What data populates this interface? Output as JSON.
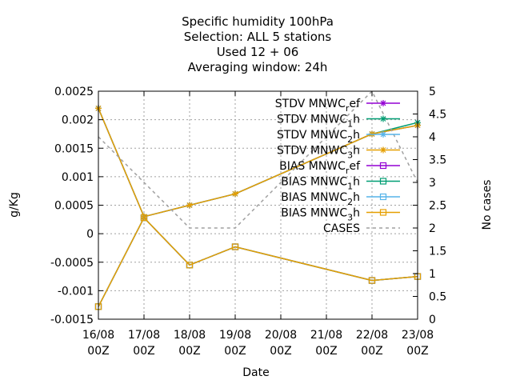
{
  "chart_data": {
    "type": "line",
    "title_lines": [
      "Specific humidity 100hPa",
      "Selection: ALL      5 stations",
      "Used  12 + 06",
      "Averaging window: 24h"
    ],
    "xlabel": "Date",
    "ylabel": "g/Kg",
    "y2label": "No cases",
    "x_ticks": [
      {
        "line1": "16/08",
        "line2": "00Z"
      },
      {
        "line1": "17/08",
        "line2": "00Z"
      },
      {
        "line1": "18/08",
        "line2": "00Z"
      },
      {
        "line1": "19/08",
        "line2": "00Z"
      },
      {
        "line1": "20/08",
        "line2": "00Z"
      },
      {
        "line1": "21/08",
        "line2": "00Z"
      },
      {
        "line1": "22/08",
        "line2": "00Z"
      },
      {
        "line1": "23/08",
        "line2": "00Z"
      }
    ],
    "xlim": [
      0,
      7
    ],
    "ylim": [
      -0.0015,
      0.0025
    ],
    "y_ticks": [
      "-0.0015",
      "-0.001",
      "-0.0005",
      "0",
      "0.0005",
      "0.001",
      "0.0015",
      "0.002",
      "0.0025"
    ],
    "y_tick_values": [
      -0.0015,
      -0.001,
      -0.0005,
      0,
      0.0005,
      0.001,
      0.0015,
      0.002,
      0.0025
    ],
    "y2lim": [
      0,
      5
    ],
    "y2_ticks": [
      "0",
      "0.5",
      "1",
      "1.5",
      "2",
      "2.5",
      "3",
      "3.5",
      "4",
      "4.5",
      "5"
    ],
    "y2_tick_values": [
      0,
      0.5,
      1,
      1.5,
      2,
      2.5,
      3,
      3.5,
      4,
      4.5,
      5
    ],
    "grid": true,
    "legend_position": "top-right",
    "series": [
      {
        "label_parts": [
          "STDV MNWC",
          "r",
          "ef"
        ],
        "color": "#9400d3",
        "marker": "star",
        "axis": "y1",
        "x": [
          0,
          1,
          2,
          3,
          6,
          7
        ],
        "values": [
          0.0022,
          0.0003,
          0.0005,
          0.0007,
          0.00175,
          0.0019
        ]
      },
      {
        "label_parts": [
          "STDV MNWC",
          "1",
          "h"
        ],
        "color": "#009e73",
        "marker": "star",
        "axis": "y1",
        "x": [
          0,
          1,
          2,
          3,
          6,
          7
        ],
        "values": [
          0.0022,
          0.0003,
          0.0005,
          0.0007,
          0.00175,
          0.00195
        ]
      },
      {
        "label_parts": [
          "STDV MNWC",
          "2",
          "h"
        ],
        "color": "#56b4e9",
        "marker": "star",
        "axis": "y1",
        "x": [
          0,
          1,
          2,
          3,
          6,
          7
        ],
        "values": [
          0.0022,
          0.0003,
          0.0005,
          0.0007,
          0.00175,
          0.0019
        ]
      },
      {
        "label_parts": [
          "STDV MNWC",
          "3",
          "h"
        ],
        "color": "#e69f00",
        "marker": "star",
        "axis": "y1",
        "x": [
          0,
          1,
          2,
          3,
          6,
          7
        ],
        "values": [
          0.0022,
          0.0003,
          0.0005,
          0.0007,
          0.00175,
          0.0019
        ]
      },
      {
        "label_parts": [
          "BIAS MNWC",
          "r",
          "ef"
        ],
        "color": "#9400d3",
        "marker": "square",
        "axis": "y1",
        "x": [
          0,
          1,
          2,
          3,
          6,
          7
        ],
        "values": [
          -0.00128,
          0.00028,
          -0.00055,
          -0.00023,
          -0.00082,
          -0.00075
        ]
      },
      {
        "label_parts": [
          "BIAS MNWC",
          "1",
          "h"
        ],
        "color": "#009e73",
        "marker": "square",
        "axis": "y1",
        "x": [
          0,
          1,
          2,
          3,
          6,
          7
        ],
        "values": [
          -0.00128,
          0.00028,
          -0.00055,
          -0.00023,
          -0.00082,
          -0.00075
        ]
      },
      {
        "label_parts": [
          "BIAS MNWC",
          "2",
          "h"
        ],
        "color": "#56b4e9",
        "marker": "square",
        "axis": "y1",
        "x": [
          0,
          1,
          2,
          3,
          6,
          7
        ],
        "values": [
          -0.00128,
          0.00028,
          -0.00055,
          -0.00023,
          -0.00082,
          -0.00075
        ]
      },
      {
        "label_parts": [
          "BIAS MNWC",
          "3",
          "h"
        ],
        "color": "#e69f00",
        "marker": "square",
        "axis": "y1",
        "x": [
          0,
          1,
          2,
          3,
          6,
          7
        ],
        "values": [
          -0.00128,
          0.00028,
          -0.00055,
          -0.00023,
          -0.00082,
          -0.00075
        ]
      },
      {
        "label_parts": [
          "CASES",
          "",
          ""
        ],
        "color": "#a0a0a0",
        "marker": "none",
        "dashed": true,
        "axis": "y2",
        "x": [
          0,
          1,
          2,
          3,
          6,
          7
        ],
        "values": [
          4,
          3,
          2,
          2,
          5,
          3
        ]
      }
    ]
  }
}
